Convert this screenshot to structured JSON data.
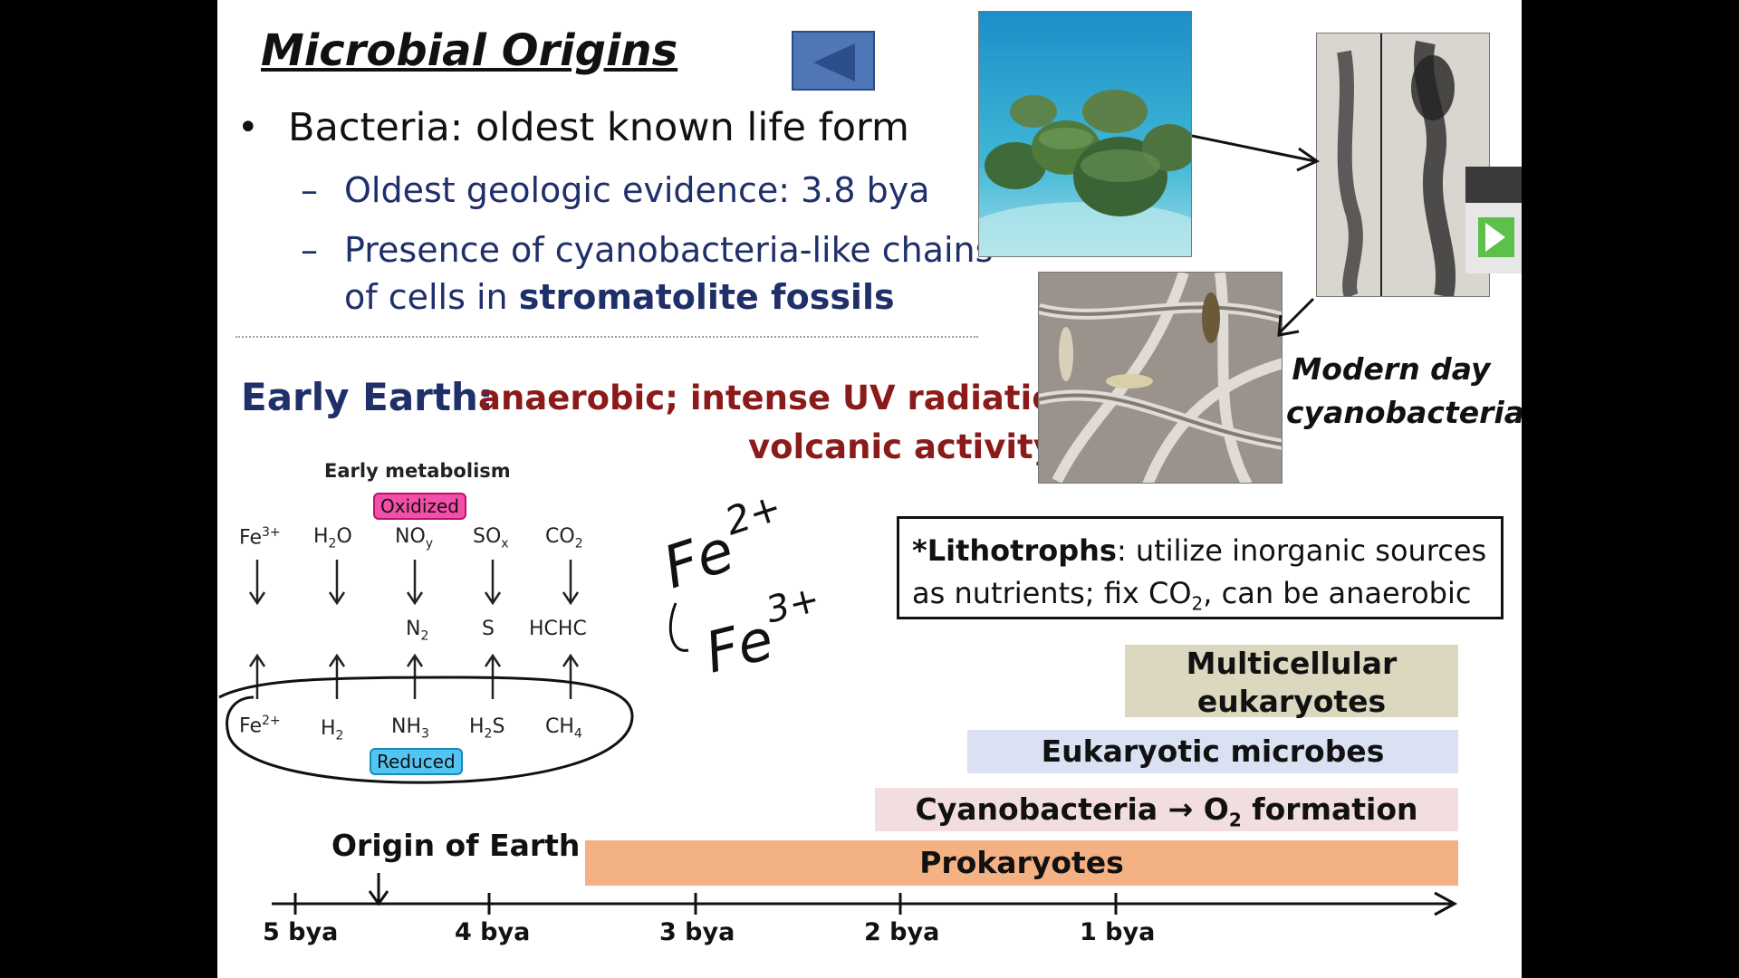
{
  "slide": {
    "title": "Microbial Origins",
    "bullet": "Bacteria:  oldest known life form",
    "sub1": "Oldest geologic evidence:  3.8  bya",
    "sub2_line1": "Presence of cyanobacteria-like chains",
    "sub2_line2_prefix": "of cells in ",
    "sub2_line2_bold": "stromatolite fossils",
    "dash": "–",
    "bullet_dot": "•",
    "early_label": "Early Earth:",
    "early_desc1": "anaerobic; intense UV radiation;",
    "early_desc2": "volcanic activity",
    "photo_caption_line1": "Modern day",
    "photo_caption_line2": "cyanobacteria"
  },
  "metabolism": {
    "title": "Early metabolism",
    "oxidized": "Oxidized",
    "reduced": "Reduced",
    "top_row": [
      {
        "base": "Fe",
        "sup": "3+",
        "sub": ""
      },
      {
        "base": "H",
        "sub": "2",
        "tail": "O"
      },
      {
        "base": "NO",
        "sub": "y",
        "tail": ""
      },
      {
        "base": "SO",
        "sub": "x",
        "tail": ""
      },
      {
        "base": "CO",
        "sub": "2",
        "tail": ""
      }
    ],
    "middle_row": [
      {
        "base": "N",
        "sub": "2"
      },
      {
        "base": "S",
        "sub": ""
      },
      {
        "base": "HCHC",
        "sub": ""
      }
    ],
    "bottom_row": [
      {
        "base": "Fe",
        "sup": "2+"
      },
      {
        "base": "H",
        "sub": "2",
        "tail": ""
      },
      {
        "base": "NH",
        "sub": "3",
        "tail": ""
      },
      {
        "base": "H",
        "sub": "2",
        "tail": "S"
      },
      {
        "base": "CH",
        "sub": "4",
        "tail": ""
      }
    ]
  },
  "handwriting": {
    "line1_base": "Fe",
    "line1_sup": "2+",
    "line2_base": "Fe",
    "line2_sup": "3+"
  },
  "note": {
    "bold": "*Lithotrophs",
    "rest1": ":  utilize inorganic sources",
    "rest2_prefix": "as nutrients; fix CO",
    "rest2_sub": "2",
    "rest2_suffix": ", can be anaerobic"
  },
  "timeline": {
    "origin_label": "Origin of Earth",
    "bars": {
      "multicellular_line1": "Multicellular",
      "multicellular_line2": "eukaryotes",
      "eukaryotic": "Eukaryotic microbes",
      "cyano_prefix": "Cyanobacteria",
      "cyano_arrow": "→",
      "cyano_mid": " O",
      "cyano_sub": "2",
      "cyano_suffix": " formation",
      "prokaryotes": "Prokaryotes"
    },
    "ticks": [
      "5 bya",
      "4 bya",
      "3 bya",
      "2 bya",
      "1 bya"
    ]
  },
  "colors": {
    "title_blue": "#1f2f6a",
    "dark_red": "#8b1a1a",
    "prokaryotes": "#f4b183",
    "cyanobacteria": "#f2dede",
    "eukaryotic": "#d9e1f2",
    "multicellular": "#dbd8bf",
    "oxidized_chip": "#f24fa8",
    "reduced_chip": "#52c5f2"
  }
}
